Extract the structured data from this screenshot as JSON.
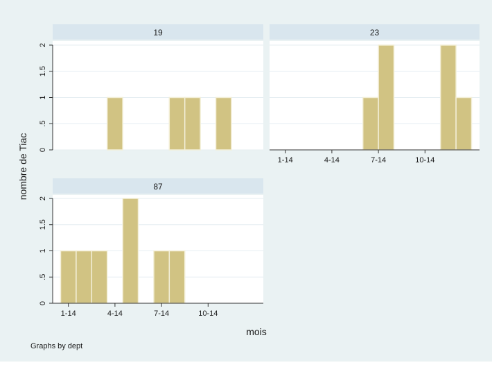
{
  "chart_data": {
    "type": "bar",
    "by_variable_note": "Graphs by dept",
    "ylabel": "nombre de Tiac",
    "xlabel": "mois",
    "ylim": [
      0,
      2
    ],
    "y_ticks": [
      "0",
      ".5",
      "1",
      "1.5",
      "2"
    ],
    "x_ticks": [
      {
        "month": 1,
        "label": "1-14"
      },
      {
        "month": 4,
        "label": "4-14"
      },
      {
        "month": 7,
        "label": "7-14"
      },
      {
        "month": 10,
        "label": "10-14"
      }
    ],
    "bar_width_months": 1,
    "panels": [
      {
        "title": "19",
        "bars": [
          {
            "month": 4,
            "count": 1
          },
          {
            "month": 8,
            "count": 1
          },
          {
            "month": 9,
            "count": 1
          },
          {
            "month": 11,
            "count": 1
          }
        ]
      },
      {
        "title": "23",
        "bars": [
          {
            "month": 6.5,
            "count": 1
          },
          {
            "month": 7.5,
            "count": 2
          },
          {
            "month": 11.5,
            "count": 2
          },
          {
            "month": 12.5,
            "count": 1
          }
        ]
      },
      {
        "title": "87",
        "bars": [
          {
            "month": 1,
            "count": 1
          },
          {
            "month": 2,
            "count": 1
          },
          {
            "month": 3,
            "count": 1
          },
          {
            "month": 5,
            "count": 2
          },
          {
            "month": 7,
            "count": 1
          },
          {
            "month": 8,
            "count": 1
          }
        ]
      }
    ],
    "colors": {
      "background": "#eaf2f3",
      "plot_area": "#ffffff",
      "panel_header": "#d9e6ee",
      "bar_fill": "#d1c383",
      "bar_stroke": "#f3efd8",
      "grid": "#e6eef2"
    }
  }
}
